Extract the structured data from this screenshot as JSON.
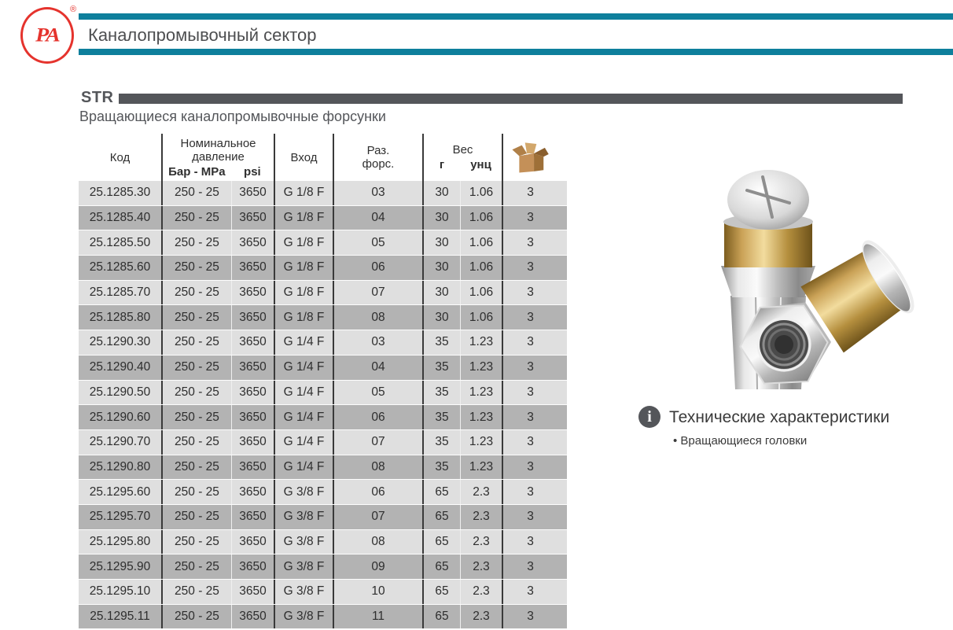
{
  "brand": {
    "logo_text": "PA",
    "registered": "®"
  },
  "header": {
    "title": "Каналопромывочный сектор"
  },
  "section": {
    "code": "STR",
    "subtitle": "Вращающиеся каналопромывочные форсунки"
  },
  "table": {
    "headers": {
      "code": "Код",
      "pressure_line1": "Номинальное",
      "pressure_line2": "давление",
      "pressure_bar": "Бар - MPa",
      "pressure_psi": "psi",
      "inlet": "Вход",
      "nozzle_line1": "Раз.",
      "nozzle_line2": "форс.",
      "weight": "Вес",
      "weight_g": "г",
      "weight_oz": "унц",
      "pack_icon": "cardboard-box-icon"
    },
    "rows": [
      [
        "25.1285.30",
        "250 - 25",
        "3650",
        "G 1/8 F",
        "03",
        "30",
        "1.06",
        "3"
      ],
      [
        "25.1285.40",
        "250 - 25",
        "3650",
        "G 1/8 F",
        "04",
        "30",
        "1.06",
        "3"
      ],
      [
        "25.1285.50",
        "250 - 25",
        "3650",
        "G 1/8 F",
        "05",
        "30",
        "1.06",
        "3"
      ],
      [
        "25.1285.60",
        "250 - 25",
        "3650",
        "G 1/8 F",
        "06",
        "30",
        "1.06",
        "3"
      ],
      [
        "25.1285.70",
        "250 - 25",
        "3650",
        "G 1/8 F",
        "07",
        "30",
        "1.06",
        "3"
      ],
      [
        "25.1285.80",
        "250 - 25",
        "3650",
        "G 1/8 F",
        "08",
        "30",
        "1.06",
        "3"
      ],
      [
        "25.1290.30",
        "250 - 25",
        "3650",
        "G 1/4 F",
        "03",
        "35",
        "1.23",
        "3"
      ],
      [
        "25.1290.40",
        "250 - 25",
        "3650",
        "G 1/4 F",
        "04",
        "35",
        "1.23",
        "3"
      ],
      [
        "25.1290.50",
        "250 - 25",
        "3650",
        "G 1/4 F",
        "05",
        "35",
        "1.23",
        "3"
      ],
      [
        "25.1290.60",
        "250 - 25",
        "3650",
        "G 1/4 F",
        "06",
        "35",
        "1.23",
        "3"
      ],
      [
        "25.1290.70",
        "250 - 25",
        "3650",
        "G 1/4 F",
        "07",
        "35",
        "1.23",
        "3"
      ],
      [
        "25.1290.80",
        "250 - 25",
        "3650",
        "G 1/4 F",
        "08",
        "35",
        "1.23",
        "3"
      ],
      [
        "25.1295.60",
        "250 - 25",
        "3650",
        "G 3/8 F",
        "06",
        "65",
        "2.3",
        "3"
      ],
      [
        "25.1295.70",
        "250 - 25",
        "3650",
        "G 3/8 F",
        "07",
        "65",
        "2.3",
        "3"
      ],
      [
        "25.1295.80",
        "250 - 25",
        "3650",
        "G 3/8 F",
        "08",
        "65",
        "2.3",
        "3"
      ],
      [
        "25.1295.90",
        "250 - 25",
        "3650",
        "G 3/8 F",
        "09",
        "65",
        "2.3",
        "3"
      ],
      [
        "25.1295.10",
        "250 - 25",
        "3650",
        "G 3/8 F",
        "10",
        "65",
        "2.3",
        "3"
      ],
      [
        "25.1295.11",
        "250 - 25",
        "3650",
        "G 3/8 F",
        "11",
        "65",
        "2.3",
        "3"
      ]
    ]
  },
  "info": {
    "icon": "info-icon",
    "title": "Технические характеристики",
    "feature": "Вращающиеся головки"
  },
  "image": {
    "name": "rotating-nozzles-photo"
  },
  "colors": {
    "teal": "#0e7f9c",
    "red": "#e5332d",
    "dark_gray": "#54565a",
    "row_light": "#dfdfdf",
    "row_dark": "#b3b3b3",
    "divider": "#3a3a3a"
  }
}
